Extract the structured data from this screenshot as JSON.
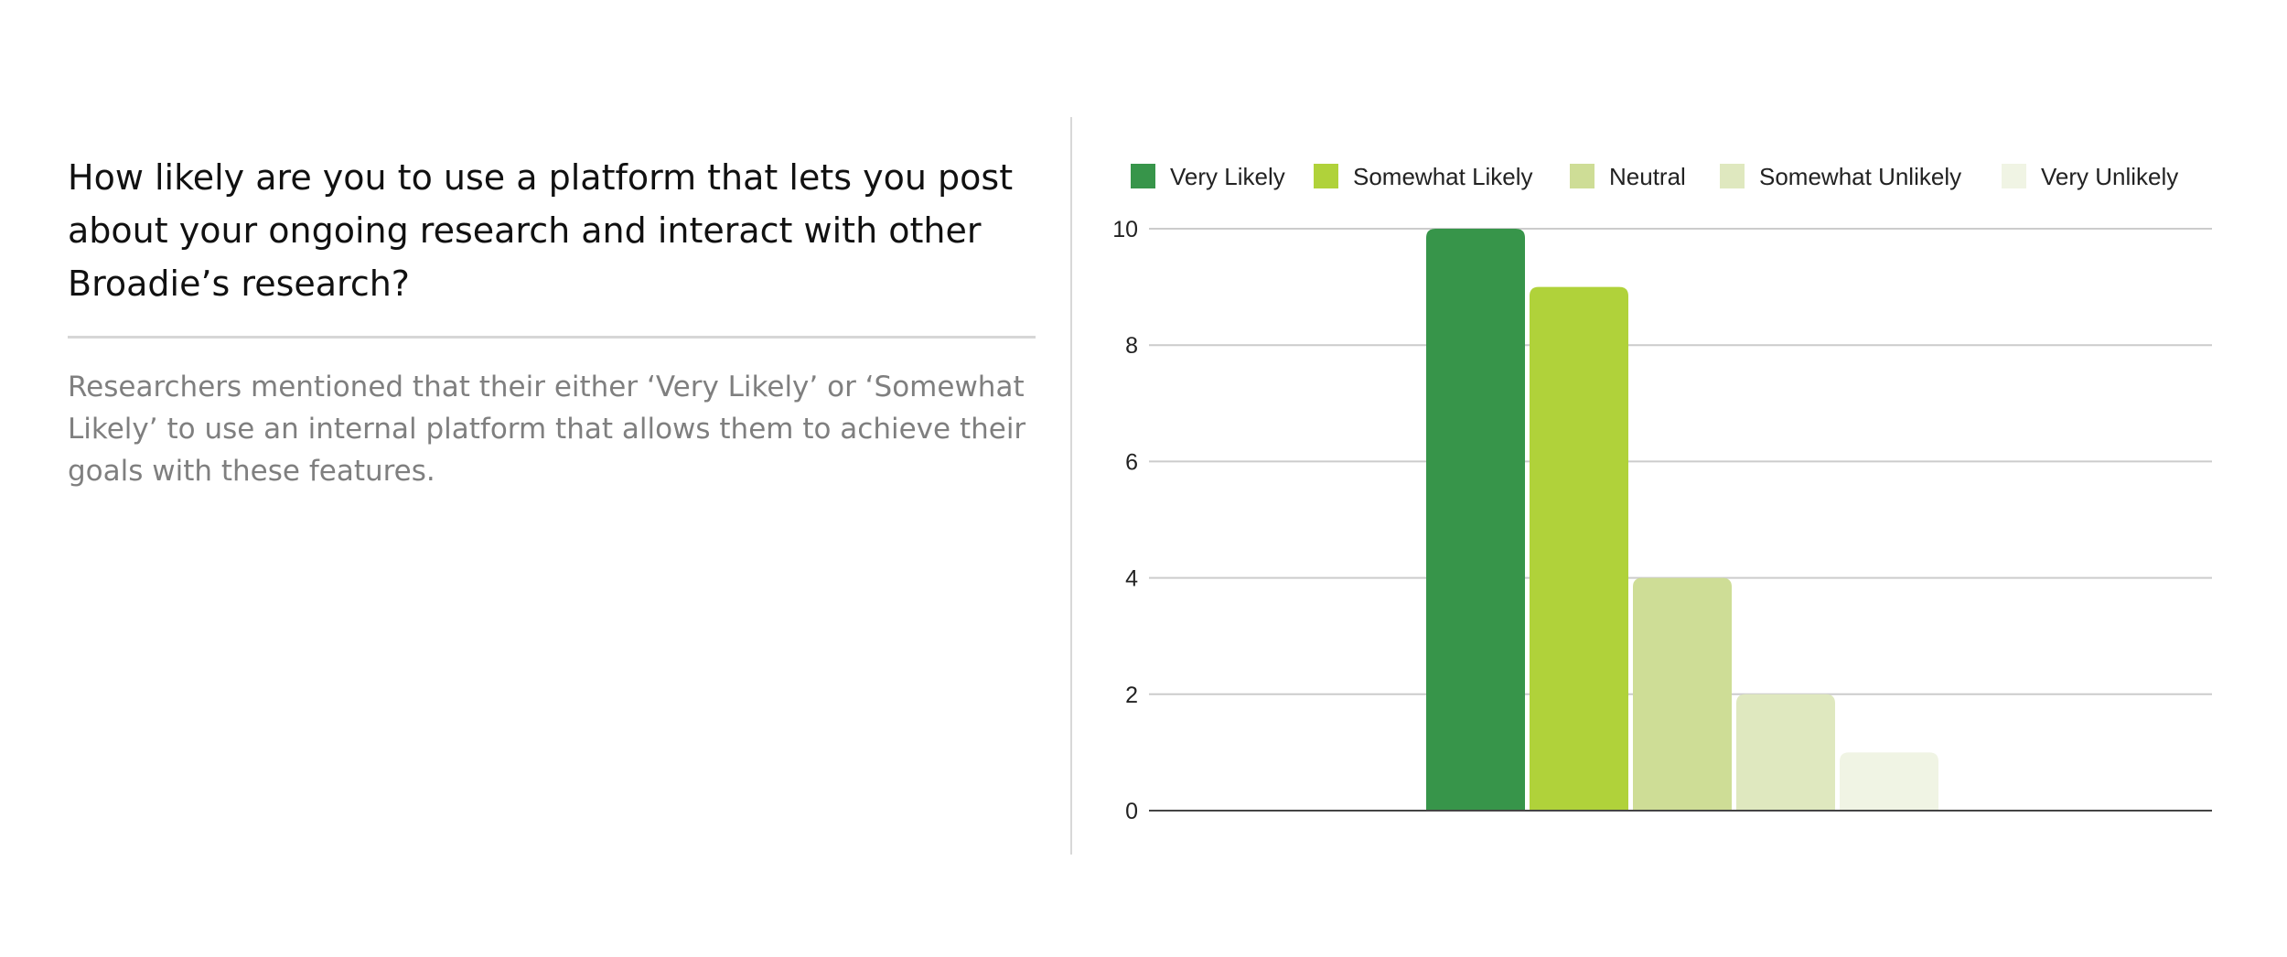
{
  "question": "How likely are you to use a platform that lets you post about your ongoing research and interact with other Broadie’s research?",
  "summary": "Researchers mentioned that their either ‘Very Likely’ or ‘Somewhat Likely’ to use an internal platform that allows them to achieve their goals with these features.",
  "chart_data": {
    "type": "bar",
    "title": "",
    "xlabel": "",
    "ylabel": "",
    "ylim": [
      0,
      10
    ],
    "yticks": [
      0,
      2,
      4,
      6,
      8,
      10
    ],
    "grid": true,
    "legend_position": "top",
    "series": [
      {
        "name": "Very Likely",
        "value": 10,
        "color": "#37954a"
      },
      {
        "name": "Somewhat Likely",
        "value": 9,
        "color": "#b0d23a"
      },
      {
        "name": "Neutral",
        "value": 4,
        "color": "#cedd96"
      },
      {
        "name": "Somewhat Unlikely",
        "value": 2,
        "color": "#dfe8bf"
      },
      {
        "name": "Very Unlikely",
        "value": 1,
        "color": "#f0f4e4"
      }
    ]
  }
}
